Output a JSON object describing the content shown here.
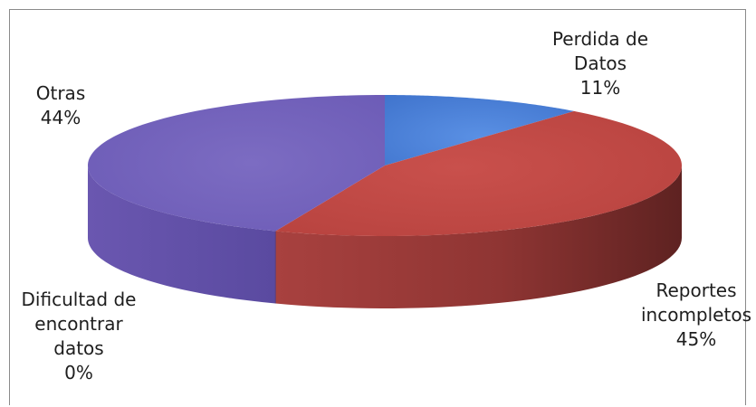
{
  "chart_data": {
    "type": "pie",
    "style": "3d-exploded-none",
    "title": "",
    "slices": [
      {
        "label_lines": [
          "Perdida de",
          "Datos"
        ],
        "percent_label": "11%",
        "value": 11,
        "color": "#4a7ed6"
      },
      {
        "label_lines": [
          "Reportes",
          "incompletos"
        ],
        "percent_label": "45%",
        "value": 45,
        "color": "#c0504d"
      },
      {
        "label_lines": [
          "Dificultad de",
          "encontrar",
          "datos"
        ],
        "percent_label": "0%",
        "value": 0,
        "color": "#9bbb59"
      },
      {
        "label_lines": [
          "Otras"
        ],
        "percent_label": "44%",
        "value": 44,
        "color": "#7463b8"
      }
    ],
    "start_angle_deg": 0,
    "direction": "clockwise",
    "legend": "none"
  }
}
